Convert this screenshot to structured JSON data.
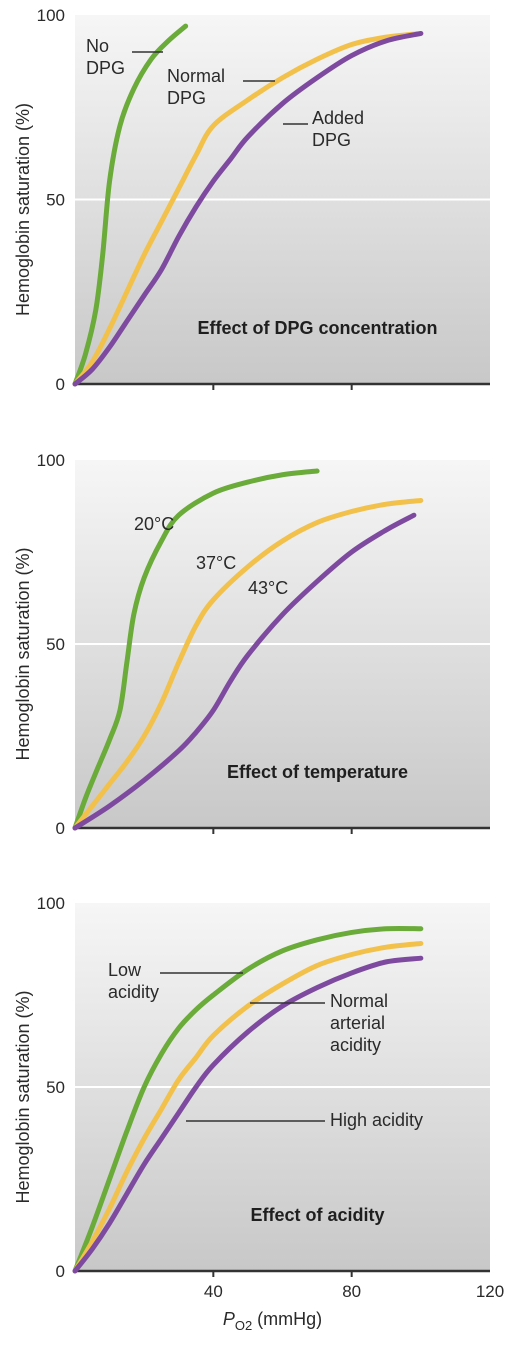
{
  "chart_data": [
    {
      "type": "line",
      "title": "Effect of DPG concentration",
      "ylabel": "Hemoglobin saturation (%)",
      "xlabel": "",
      "ylim": [
        0,
        100
      ],
      "xlim": [
        0,
        120
      ],
      "y_ticks": [
        "0",
        "50",
        "100"
      ],
      "x_ticks": [],
      "grid": true,
      "series": [
        {
          "name": "No DPG",
          "color": "#6aab3a",
          "points": [
            [
              0,
              0
            ],
            [
              3,
              8
            ],
            [
              6,
              20
            ],
            [
              8,
              35
            ],
            [
              10,
              55
            ],
            [
              13,
              70
            ],
            [
              17,
              80
            ],
            [
              22,
              88
            ],
            [
              27,
              93
            ],
            [
              32,
              97
            ]
          ]
        },
        {
          "name": "Normal DPG",
          "color": "#f2c14b",
          "points": [
            [
              0,
              0
            ],
            [
              5,
              6
            ],
            [
              10,
              15
            ],
            [
              15,
              25
            ],
            [
              20,
              35
            ],
            [
              25,
              44
            ],
            [
              30,
              53
            ],
            [
              35,
              62
            ],
            [
              40,
              70
            ],
            [
              50,
              77
            ],
            [
              60,
              83
            ],
            [
              70,
              88
            ],
            [
              80,
              92
            ],
            [
              90,
              94
            ],
            [
              100,
              95
            ]
          ]
        },
        {
          "name": "Added DPG",
          "color": "#7e4aa0",
          "points": [
            [
              0,
              0
            ],
            [
              5,
              4
            ],
            [
              10,
              10
            ],
            [
              15,
              17
            ],
            [
              20,
              24
            ],
            [
              25,
              31
            ],
            [
              30,
              40
            ],
            [
              35,
              48
            ],
            [
              40,
              55
            ],
            [
              45,
              61
            ],
            [
              50,
              67
            ],
            [
              60,
              76
            ],
            [
              70,
              83
            ],
            [
              80,
              89
            ],
            [
              90,
              93
            ],
            [
              100,
              95
            ]
          ]
        }
      ],
      "annotations": [
        {
          "lines": [
            "No",
            "DPG"
          ]
        },
        {
          "lines": [
            "Normal",
            "DPG"
          ]
        },
        {
          "lines": [
            "Added",
            "DPG"
          ]
        }
      ]
    },
    {
      "type": "line",
      "title": "Effect of temperature",
      "ylabel": "Hemoglobin saturation (%)",
      "xlabel": "",
      "ylim": [
        0,
        100
      ],
      "xlim": [
        0,
        120
      ],
      "y_ticks": [
        "0",
        "50",
        "100"
      ],
      "x_ticks": [],
      "grid": true,
      "series": [
        {
          "name": "20°C",
          "color": "#6aab3a",
          "points": [
            [
              0,
              0
            ],
            [
              3,
              8
            ],
            [
              6,
              15
            ],
            [
              10,
              24
            ],
            [
              13,
              32
            ],
            [
              15,
              45
            ],
            [
              17,
              58
            ],
            [
              20,
              68
            ],
            [
              25,
              78
            ],
            [
              30,
              85
            ],
            [
              40,
              91
            ],
            [
              50,
              94
            ],
            [
              60,
              96
            ],
            [
              70,
              97
            ]
          ]
        },
        {
          "name": "37°C",
          "color": "#f2c14b",
          "points": [
            [
              0,
              0
            ],
            [
              5,
              6
            ],
            [
              10,
              12
            ],
            [
              15,
              18
            ],
            [
              20,
              25
            ],
            [
              25,
              34
            ],
            [
              30,
              45
            ],
            [
              35,
              55
            ],
            [
              40,
              62
            ],
            [
              50,
              71
            ],
            [
              60,
              78
            ],
            [
              70,
              83
            ],
            [
              80,
              86
            ],
            [
              90,
              88
            ],
            [
              100,
              89
            ]
          ]
        },
        {
          "name": "43°C",
          "color": "#7e4aa0",
          "points": [
            [
              0,
              0
            ],
            [
              10,
              6
            ],
            [
              20,
              13
            ],
            [
              30,
              21
            ],
            [
              35,
              26
            ],
            [
              40,
              32
            ],
            [
              45,
              40
            ],
            [
              50,
              47
            ],
            [
              60,
              58
            ],
            [
              70,
              67
            ],
            [
              80,
              75
            ],
            [
              90,
              81
            ],
            [
              98,
              85
            ]
          ]
        }
      ],
      "annotations": [
        {
          "lines": [
            "20°C"
          ]
        },
        {
          "lines": [
            "37°C"
          ]
        },
        {
          "lines": [
            "43°C"
          ]
        }
      ]
    },
    {
      "type": "line",
      "title": "Effect of acidity",
      "ylabel": "Hemoglobin saturation (%)",
      "xlabel": "PO2 (mmHg)",
      "ylim": [
        0,
        100
      ],
      "xlim": [
        0,
        120
      ],
      "y_ticks": [
        "0",
        "50",
        "100"
      ],
      "x_ticks": [
        "40",
        "80",
        "120"
      ],
      "grid": true,
      "series": [
        {
          "name": "Low acidity",
          "color": "#6aab3a",
          "points": [
            [
              0,
              0
            ],
            [
              5,
              12
            ],
            [
              10,
              25
            ],
            [
              15,
              38
            ],
            [
              20,
              50
            ],
            [
              25,
              59
            ],
            [
              30,
              66
            ],
            [
              35,
              71
            ],
            [
              40,
              75
            ],
            [
              50,
              82
            ],
            [
              60,
              87
            ],
            [
              70,
              90
            ],
            [
              80,
              92
            ],
            [
              90,
              93
            ],
            [
              100,
              93
            ]
          ]
        },
        {
          "name": "Normal arterial acidity",
          "color": "#f2c14b",
          "points": [
            [
              0,
              0
            ],
            [
              5,
              8
            ],
            [
              10,
              17
            ],
            [
              15,
              27
            ],
            [
              20,
              36
            ],
            [
              25,
              44
            ],
            [
              30,
              52
            ],
            [
              35,
              58
            ],
            [
              40,
              64
            ],
            [
              50,
              72
            ],
            [
              60,
              78
            ],
            [
              70,
              83
            ],
            [
              80,
              86
            ],
            [
              90,
              88
            ],
            [
              100,
              89
            ]
          ]
        },
        {
          "name": "High acidity",
          "color": "#7e4aa0",
          "points": [
            [
              0,
              0
            ],
            [
              5,
              6
            ],
            [
              10,
              13
            ],
            [
              15,
              21
            ],
            [
              20,
              29
            ],
            [
              25,
              36
            ],
            [
              30,
              43
            ],
            [
              35,
              50
            ],
            [
              40,
              56
            ],
            [
              50,
              65
            ],
            [
              60,
              72
            ],
            [
              70,
              77
            ],
            [
              80,
              81
            ],
            [
              90,
              84
            ],
            [
              100,
              85
            ]
          ]
        }
      ],
      "annotations": [
        {
          "lines": [
            "Low",
            "acidity"
          ]
        },
        {
          "lines": [
            "Normal",
            "arterial",
            "acidity"
          ]
        },
        {
          "lines": [
            "High acidity"
          ]
        }
      ]
    }
  ],
  "colors": {
    "panel_top": "#f5f5f5",
    "panel_bottom": "#c9c9c9",
    "green": "#6aab3a",
    "yellow": "#f2c14b",
    "purple": "#7e4aa0"
  }
}
